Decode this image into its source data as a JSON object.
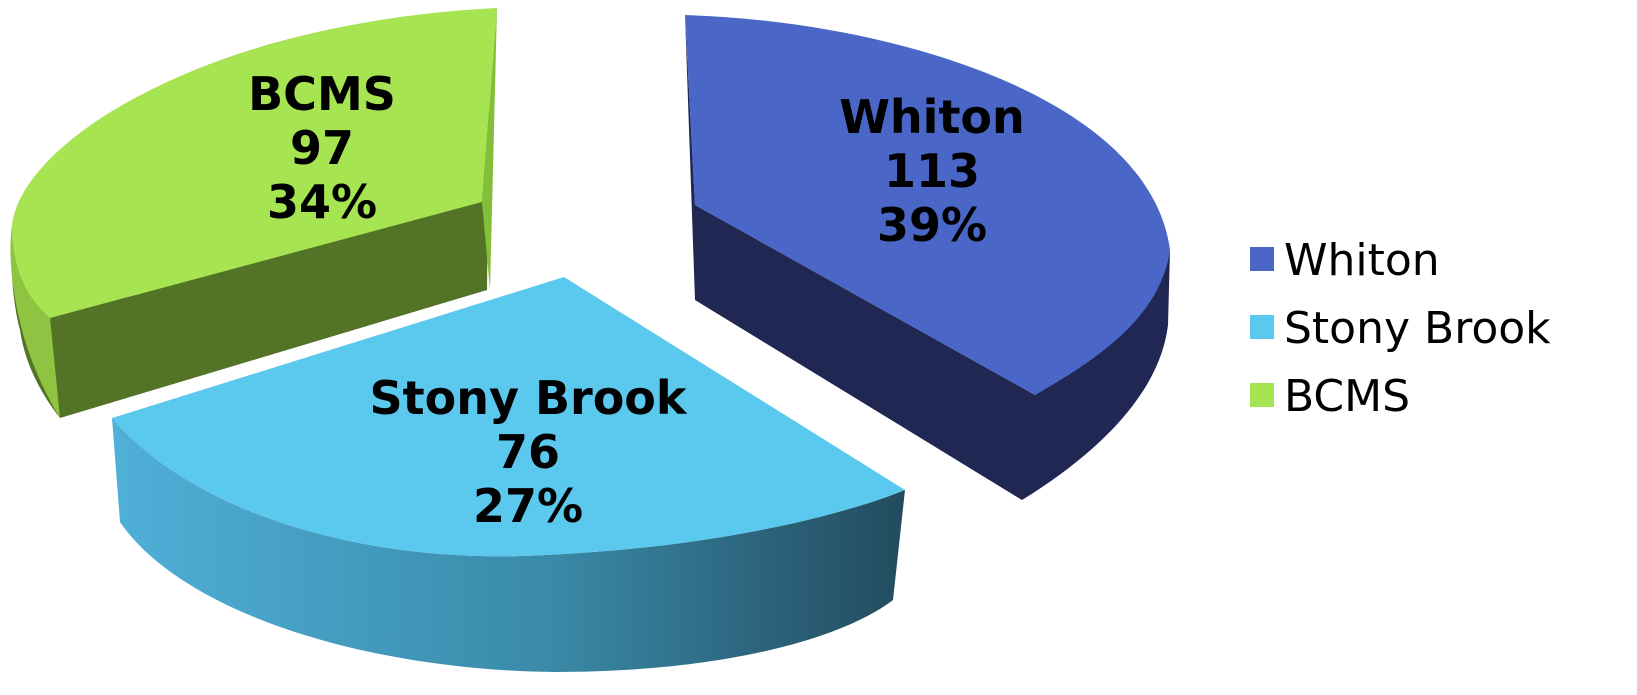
{
  "chart_data": {
    "type": "pie",
    "style": "3d-exploded",
    "categories": [
      "Whiton",
      "Stony Brook",
      "BCMS"
    ],
    "values": [
      113,
      76,
      97
    ],
    "percents": [
      "39%",
      "27%",
      "34%"
    ],
    "legend_position": "right",
    "slices": [
      {
        "name": "Whiton",
        "value": "113",
        "percent": "39%",
        "color": "#4a66c6",
        "side_color": "#1f2752"
      },
      {
        "name": "Stony Brook",
        "value": "76",
        "percent": "27%",
        "color": "#5bc8ed",
        "side_color": "#2a6f86"
      },
      {
        "name": "BCMS",
        "value": "97",
        "percent": "34%",
        "color": "#a6e451",
        "side_color": "#537426"
      }
    ]
  }
}
